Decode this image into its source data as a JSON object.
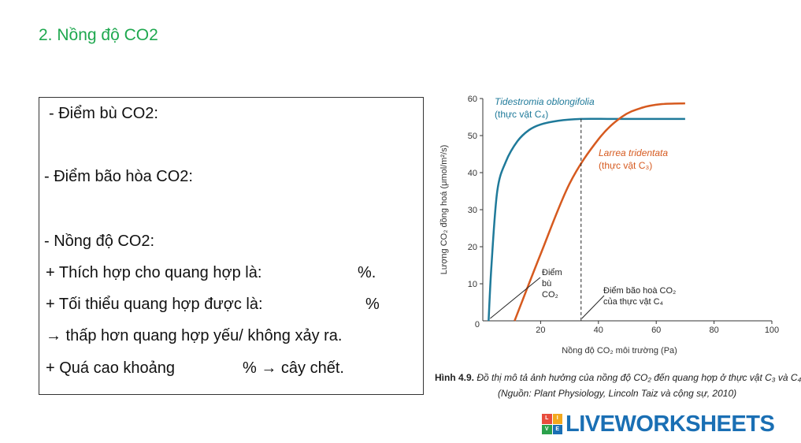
{
  "heading": "2. Nồng độ CO2",
  "textbox": {
    "line1": "- Điểm bù CO2:",
    "line2": "-  Điểm bão hòa CO2:",
    "line3": "-  Nồng độ CO2:",
    "line4a": " + Thích hợp cho quang hợp là:",
    "line4b": "%.",
    "line5a": "+ Tối thiểu quang hợp được là:",
    "line5b": "%",
    "line6": "→ thấp hơn quang hợp yếu/ không xảy ra.",
    "line7a": "+  Quá cao khoảng",
    "line7b": "% → cây chết."
  },
  "chart_data": {
    "type": "line",
    "xlabel": "Nồng độ CO₂ môi trường (Pa)",
    "ylabel": "Lượng CO₂ đồng hoá (μmol/m²/s)",
    "xlim": [
      0,
      100
    ],
    "ylim": [
      0,
      60
    ],
    "xticks": [
      "0",
      "20",
      "40",
      "60",
      "80",
      "100"
    ],
    "yticks": [
      "10",
      "20",
      "30",
      "40",
      "50",
      "60"
    ],
    "series": [
      {
        "name": "Tidestromia oblongifolia",
        "subtitle": "(thực vật C₄)",
        "color": "#1f7a9a",
        "x": [
          2,
          3,
          5,
          8,
          12,
          16,
          20,
          26,
          34,
          45,
          60,
          70
        ],
        "y": [
          0,
          15,
          35,
          43,
          48.5,
          51.5,
          53,
          54,
          54.5,
          54.5,
          54.5,
          54.5
        ]
      },
      {
        "name": "Larrea tridentata",
        "subtitle": "(thực vật C₃)",
        "color": "#d65a1f",
        "x": [
          11,
          20,
          30,
          40,
          48,
          55,
          62,
          70
        ],
        "y": [
          0,
          18,
          37,
          49,
          55,
          57.5,
          58.5,
          58.7
        ]
      }
    ],
    "annotations": [
      {
        "text": [
          "Điểm",
          "bù",
          "CO₂"
        ],
        "point_x": 2,
        "point_y": 0
      },
      {
        "text": [
          "Điểm bão hoà CO₂",
          "của thực vật C₄"
        ],
        "point_x": 34,
        "point_y": 54.5
      }
    ]
  },
  "caption": {
    "label": "Hình 4.9.",
    "text": "Đồ thị mô tả ảnh hưởng của nồng độ CO₂ đến quang hợp ở thực vật C₃ và C₄",
    "source": "(Nguồn: Plant Physiology, Lincoln Taiz và cộng sự, 2010)"
  },
  "logo": {
    "text": "LIVEWORKSHEETS",
    "letters": [
      "L",
      "I",
      "V",
      "E"
    ]
  }
}
